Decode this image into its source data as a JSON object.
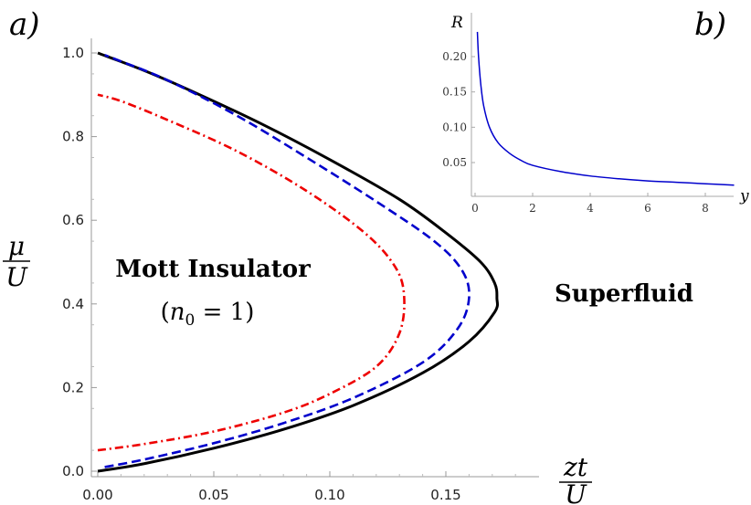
{
  "panel_a_label": "a)",
  "panel_b_label": "b)",
  "regions": {
    "mott_name": "Mott Insulator",
    "mott_condition_open": "(",
    "mott_condition_var": "n",
    "mott_condition_sub": "0",
    "mott_condition_rest": " = 1)",
    "superfluid": "Superfluid"
  },
  "axis_labels": {
    "y_num": "μ",
    "y_den": "U",
    "x_num": "zt",
    "x_den": "U",
    "inset_y": "R",
    "inset_x": "y"
  },
  "chart_data": [
    {
      "type": "line",
      "panel": "a",
      "xlim": [
        0,
        0.19
      ],
      "ylim": [
        0,
        1.0
      ],
      "x_ticks": [
        "0.00",
        "0.05",
        "0.10",
        "0.15"
      ],
      "y_ticks": [
        "0.0",
        "0.2",
        "0.4",
        "0.6",
        "0.8",
        "1.0"
      ],
      "grid": false,
      "series": [
        {
          "style": "solid",
          "color": "#000000",
          "points": [
            [
              0,
              0
            ],
            [
              0.02,
              0.018
            ],
            [
              0.05,
              0.055
            ],
            [
              0.08,
              0.1
            ],
            [
              0.11,
              0.157
            ],
            [
              0.14,
              0.235
            ],
            [
              0.16,
              0.31
            ],
            [
              0.171,
              0.38
            ],
            [
              0.172,
              0.414
            ],
            [
              0.171,
              0.45
            ],
            [
              0.165,
              0.5
            ],
            [
              0.15,
              0.57
            ],
            [
              0.13,
              0.65
            ],
            [
              0.1,
              0.745
            ],
            [
              0.07,
              0.832
            ],
            [
              0.04,
              0.91
            ],
            [
              0.02,
              0.958
            ],
            [
              0,
              1.0
            ]
          ]
        },
        {
          "style": "dashed",
          "color": "#0000cc",
          "points": [
            [
              0.003,
              0.01
            ],
            [
              0.02,
              0.028
            ],
            [
              0.05,
              0.067
            ],
            [
              0.08,
              0.115
            ],
            [
              0.11,
              0.175
            ],
            [
              0.14,
              0.26
            ],
            [
              0.155,
              0.34
            ],
            [
              0.16,
              0.414
            ],
            [
              0.157,
              0.48
            ],
            [
              0.145,
              0.55
            ],
            [
              0.12,
              0.645
            ],
            [
              0.09,
              0.75
            ],
            [
              0.06,
              0.85
            ],
            [
              0.03,
              0.935
            ],
            [
              0.01,
              0.98
            ],
            [
              0.003,
              0.995
            ]
          ]
        },
        {
          "style": "dashdot",
          "color": "#ee0000",
          "points": [
            [
              0,
              0.05
            ],
            [
              0.02,
              0.065
            ],
            [
              0.05,
              0.095
            ],
            [
              0.08,
              0.14
            ],
            [
              0.1,
              0.185
            ],
            [
              0.12,
              0.25
            ],
            [
              0.13,
              0.33
            ],
            [
              0.132,
              0.42
            ],
            [
              0.128,
              0.49
            ],
            [
              0.115,
              0.57
            ],
            [
              0.09,
              0.67
            ],
            [
              0.06,
              0.765
            ],
            [
              0.03,
              0.84
            ],
            [
              0.01,
              0.885
            ],
            [
              0,
              0.9
            ]
          ]
        }
      ]
    },
    {
      "type": "line",
      "panel": "b",
      "xlim": [
        0,
        9
      ],
      "ylim": [
        0.005,
        0.235
      ],
      "x_ticks": [
        "0",
        "2",
        "4",
        "6",
        "8"
      ],
      "y_ticks": [
        "0.05",
        "0.10",
        "0.15",
        "0.20"
      ],
      "grid": false,
      "series": [
        {
          "color": "#0000cc",
          "points": [
            [
              0.08,
              0.235
            ],
            [
              0.12,
              0.2
            ],
            [
              0.2,
              0.16
            ],
            [
              0.3,
              0.13
            ],
            [
              0.5,
              0.1
            ],
            [
              0.8,
              0.078
            ],
            [
              1.2,
              0.063
            ],
            [
              1.6,
              0.053
            ],
            [
              2,
              0.046
            ],
            [
              3,
              0.037
            ],
            [
              4,
              0.031
            ],
            [
              5,
              0.027
            ],
            [
              6,
              0.024
            ],
            [
              7,
              0.022
            ],
            [
              8,
              0.02
            ],
            [
              9,
              0.018
            ]
          ]
        }
      ]
    }
  ]
}
